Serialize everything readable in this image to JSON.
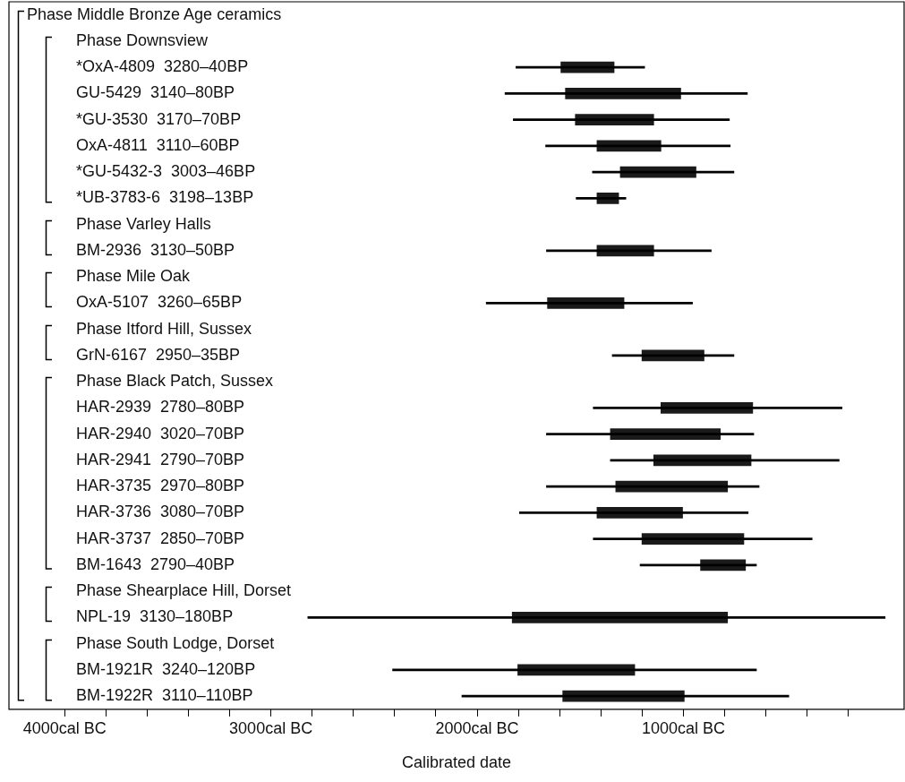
{
  "chart_data": {
    "type": "bar",
    "orientation": "horizontal",
    "xlabel": "Calibrated date",
    "categories": [
      "Phase Middle Bronze Age ceramics",
      "Phase Downsview",
      "*OxA-4809  3280–40BP",
      "GU-5429  3140–80BP",
      "*GU-3530  3170–70BP",
      "OxA-4811  3110–60BP",
      "*GU-5432-3  3003–46BP",
      "*UB-3783-6  3198–13BP",
      "Phase Varley Halls",
      "BM-2936  3130–50BP",
      "Phase Mile Oak",
      "OxA-5107  3260–65BP",
      "Phase Itford Hill, Sussex",
      "GrN-6167  2950–35BP",
      "Phase Black Patch, Sussex",
      "HAR-2939  2780–80BP",
      "HAR-2940  3020–70BP",
      "HAR-2941  2790–70BP",
      "HAR-3735  2970–80BP",
      "HAR-3736  3080–70BP",
      "HAR-3737  2850–70BP",
      "BM-1643  2790–40BP",
      "Phase Shearplace Hill, Dorset",
      "NPL-19  3130–180BP",
      "Phase South Lodge, Dorset",
      "BM-1921R  3240–120BP",
      "BM-1922R  3110–110BP"
    ],
    "series": [
      {
        "color": "#000000",
        "base": [
          null,
          null,
          -1812,
          -1865,
          -1825,
          -1668,
          -1441,
          -1520,
          null,
          -1664,
          null,
          -1956,
          null,
          -1345,
          null,
          -1437,
          -1664,
          -1354,
          -1664,
          -1795,
          -1437,
          -1210,
          null,
          -2821,
          null,
          -2410,
          -2074
        ],
        "values": [
          null,
          null,
          624,
          1175,
          1048,
          895,
          686,
          241,
          null,
          799,
          null,
          1000,
          null,
          590,
          null,
          1206,
          1005,
          1109,
          1031,
          1109,
          1061,
          564,
          null,
          2799,
          null,
          1764,
          1585
        ]
      },
      {
        "color": "#1a1a1a",
        "base": [
          null,
          null,
          -1594,
          -1572,
          -1524,
          -1419,
          -1306,
          -1419,
          null,
          -1419,
          null,
          -1659,
          null,
          -1201,
          null,
          -1109,
          -1354,
          -1144,
          -1328,
          -1419,
          -1201,
          -917,
          null,
          -1830,
          null,
          -1803,
          -1585
        ],
        "values": [
          null,
          null,
          258,
          559,
          380,
          310,
          367,
          105,
          null,
          275,
          null,
          371,
          null,
          301,
          null,
          445,
          533,
          472,
          542,
          415,
          494,
          218,
          null,
          1044,
          null,
          567,
          589
        ]
      }
    ],
    "xlim": [
      -4270,
      70
    ],
    "xticks": [
      {
        "value": -4000,
        "label": "4000cal BC"
      },
      {
        "value": -3800,
        "label": null
      },
      {
        "value": -3600,
        "label": null
      },
      {
        "value": -3400,
        "label": null
      },
      {
        "value": -3200,
        "label": null
      },
      {
        "value": -3000,
        "label": "3000cal BC"
      },
      {
        "value": -2800,
        "label": null
      },
      {
        "value": -2600,
        "label": null
      },
      {
        "value": -2400,
        "label": null
      },
      {
        "value": -2200,
        "label": null
      },
      {
        "value": -2000,
        "label": "2000cal BC"
      },
      {
        "value": -1800,
        "label": null
      },
      {
        "value": -1600,
        "label": null
      },
      {
        "value": -1400,
        "label": null
      },
      {
        "value": -1200,
        "label": null
      },
      {
        "value": -1000,
        "label": "1000cal BC"
      },
      {
        "value": -800,
        "label": null
      },
      {
        "value": -600,
        "label": null
      },
      {
        "value": -400,
        "label": null
      },
      {
        "value": -200,
        "label": null
      }
    ],
    "grid": false,
    "legend": false
  }
}
